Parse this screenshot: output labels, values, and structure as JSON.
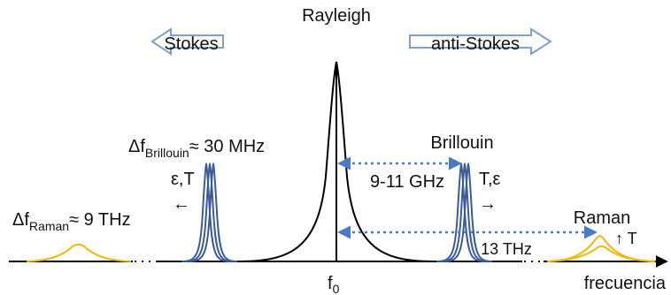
{
  "colors": {
    "rayleigh": "#000000",
    "brillouin": "#3a5a9a",
    "raman": "#f2b705",
    "dotted_arrow": "#4a7ac4",
    "block_arrow_stroke": "#7f9fcf",
    "block_arrow_fill": "#ffffff",
    "axis": "#000000"
  },
  "labels": {
    "rayleigh": "Rayleigh",
    "stokes": "Stokes",
    "anti_stokes": "anti-Stokes",
    "delta_brillouin_prefix": "Δf",
    "delta_brillouin_sub": "Brillouin",
    "delta_brillouin_value": "≈ 30 MHz",
    "brillouin": "Brillouin",
    "gap_brillouin": "9-11 GHz",
    "eps_t_left": "ε,T",
    "t_eps_right": "T,ε",
    "left_arrow": "←",
    "right_arrow": "→",
    "delta_raman_prefix": "Δf",
    "delta_raman_sub": "Raman",
    "delta_raman_value": "≈ 9 THz",
    "raman": "Raman",
    "raman_t": "↑ T",
    "gap_raman": "13 THz",
    "f0_main": "f",
    "f0_sub": "0",
    "axis_label": "frecuencia"
  },
  "icons": {
    "stokes_arrow": "block-arrow-left-icon",
    "anti_stokes_arrow": "block-arrow-right-icon",
    "axis_arrow": "arrow-right-icon"
  }
}
